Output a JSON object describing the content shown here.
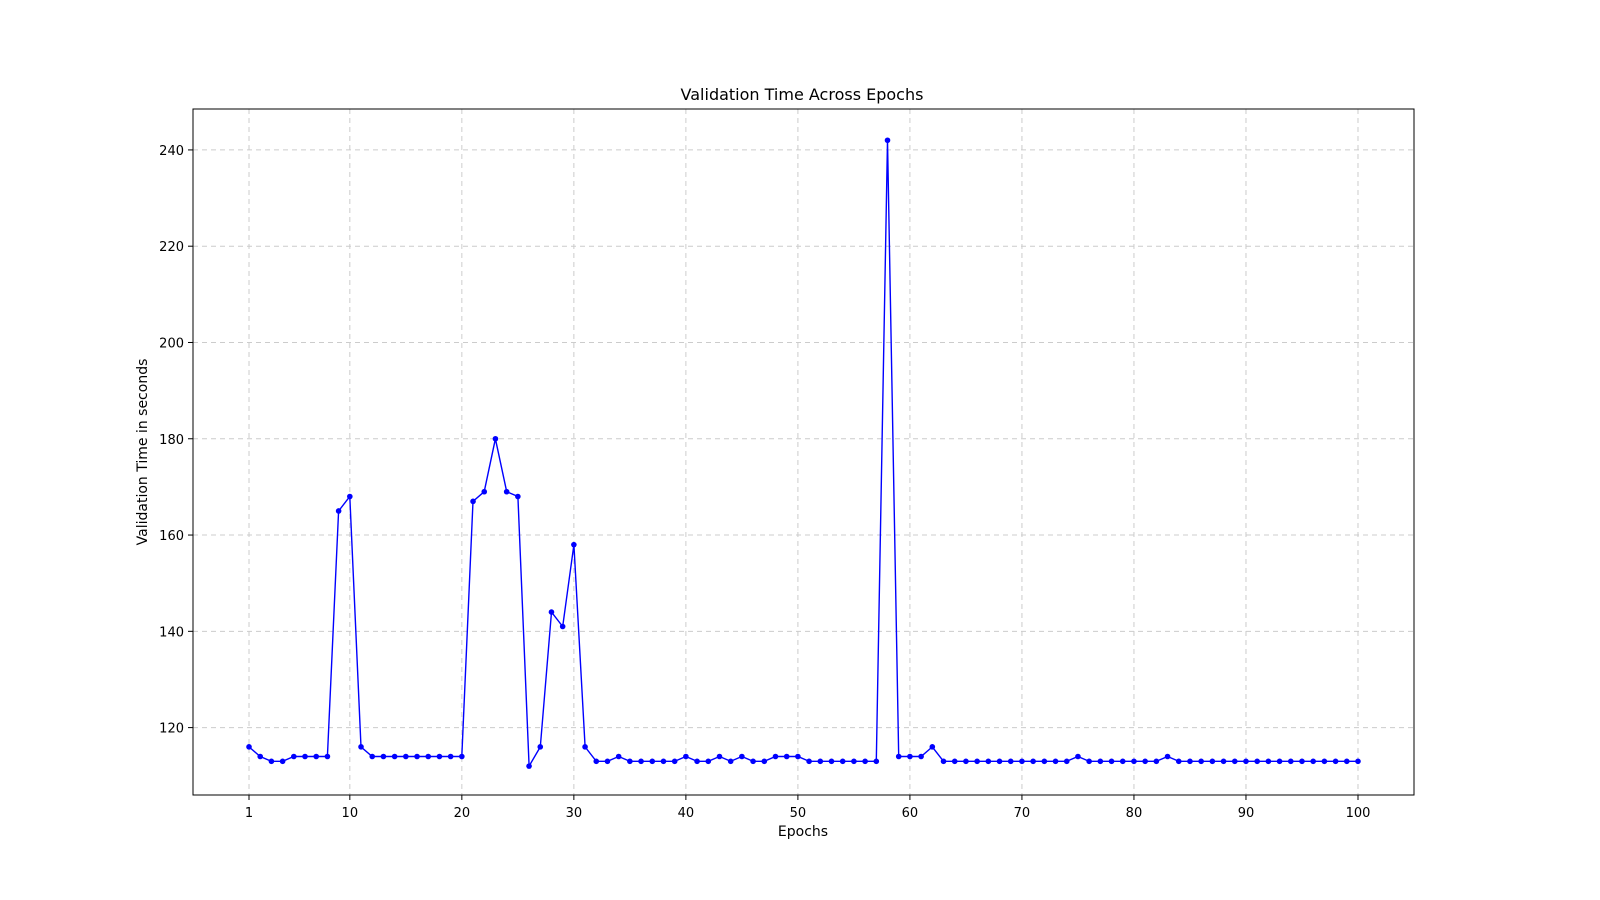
{
  "chart_data": {
    "type": "line",
    "title": "Validation Time Across Epochs",
    "xlabel": "Epochs",
    "ylabel": "Validation Time in seconds",
    "xlim": [
      -4,
      105
    ],
    "ylim": [
      106,
      248.5
    ],
    "x_ticks": [
      1,
      10,
      20,
      30,
      40,
      50,
      60,
      70,
      80,
      90,
      100
    ],
    "y_ticks": [
      120,
      140,
      160,
      180,
      200,
      220,
      240
    ],
    "grid": true,
    "line_color": "#0000ff",
    "series": [
      {
        "x": [
          1,
          2,
          3,
          4,
          5,
          6,
          7,
          8,
          9,
          10,
          11,
          12,
          13,
          14,
          15,
          16,
          17,
          18,
          19,
          20,
          21,
          22,
          23,
          24,
          25,
          26,
          27,
          28,
          29,
          30,
          31,
          32,
          33,
          34,
          35,
          36,
          37,
          38,
          39,
          40,
          41,
          42,
          43,
          44,
          45,
          46,
          47,
          48,
          49,
          50,
          51,
          52,
          53,
          54,
          55,
          56,
          57,
          58,
          59,
          60,
          61,
          62,
          63,
          64,
          65,
          66,
          67,
          68,
          69,
          70,
          71,
          72,
          73,
          74,
          75,
          76,
          77,
          78,
          79,
          80,
          81,
          82,
          83,
          84,
          85,
          86,
          87,
          88,
          89,
          90,
          91,
          92,
          93,
          94,
          95,
          96,
          97,
          98,
          99,
          100
        ],
        "values": [
          116,
          114,
          113,
          113,
          114,
          114,
          114,
          114,
          165,
          168,
          116,
          114,
          114,
          114,
          114,
          114,
          114,
          114,
          114,
          114,
          167,
          169,
          180,
          169,
          168,
          112,
          116,
          144,
          141,
          158,
          116,
          113,
          113,
          114,
          113,
          113,
          113,
          113,
          113,
          114,
          113,
          113,
          114,
          113,
          114,
          113,
          113,
          114,
          114,
          114,
          113,
          113,
          113,
          113,
          113,
          113,
          113,
          242,
          114,
          114,
          114,
          116,
          113,
          113,
          113,
          113,
          113,
          113,
          113,
          113,
          113,
          113,
          113,
          113,
          114,
          113,
          113,
          113,
          113,
          113,
          113,
          113,
          114,
          113,
          113,
          113,
          113,
          113,
          113,
          113,
          113,
          113,
          113,
          113,
          113,
          113,
          113,
          113,
          113,
          113
        ]
      }
    ]
  }
}
